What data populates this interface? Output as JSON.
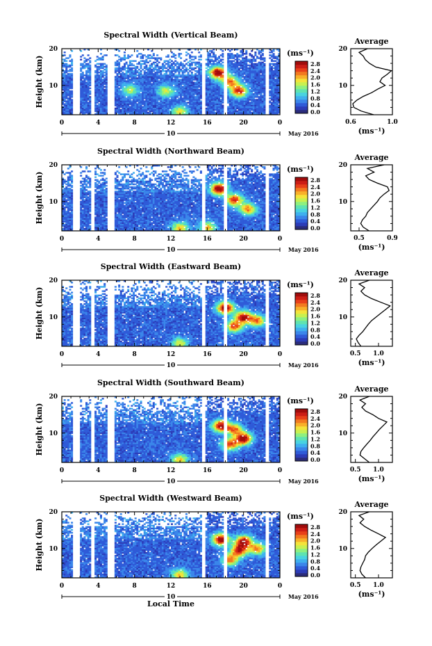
{
  "figure": {
    "x_axis_label": "Local Time",
    "date_label": "May 2016",
    "day_label": "10",
    "colorbar_unit": "(ms⁻¹)",
    "colorbar_ticks": [
      "2.8",
      "2.4",
      "2.0",
      "1.6",
      "1.2",
      "0.8",
      "0.4",
      "0.0"
    ],
    "colorbar_colors": [
      "#2b2c7a",
      "#2c3cb8",
      "#2f5bd8",
      "#3b86ea",
      "#3fb0ee",
      "#49d3e0",
      "#5fe3b0",
      "#8ef080",
      "#c8f050",
      "#f4e33a",
      "#f8b02a",
      "#f27a20",
      "#e8401a",
      "#cc1d16",
      "#a00c0c"
    ],
    "avg_title": "Average",
    "avg_xlabel": "(ms⁻¹)"
  },
  "chart_data": [
    {
      "type": "heatmap",
      "title": "Spectral Width (Vertical Beam)",
      "xlabel": "",
      "ylabel": "Height (km)",
      "x_ticks": [
        "0",
        "4",
        "8",
        "12",
        "16",
        "20",
        "0"
      ],
      "y_ticks": [
        "20",
        "10"
      ],
      "xlim": [
        0,
        24
      ],
      "ylim": [
        2,
        20
      ],
      "hotspots": [
        {
          "t": 17.2,
          "h": 13.5,
          "v": 2.6
        },
        {
          "t": 19.5,
          "h": 8.5,
          "v": 2.2
        },
        {
          "t": 18.5,
          "h": 11,
          "v": 1.8
        },
        {
          "t": 7.5,
          "h": 8.8,
          "v": 1.2
        },
        {
          "t": 11.5,
          "h": 8.5,
          "v": 1.3
        },
        {
          "t": 13,
          "h": 2.8,
          "v": 1.4
        }
      ],
      "gaps": [
        [
          1.1,
          1.9
        ],
        [
          3.2,
          3.5
        ],
        [
          5.1,
          5.8
        ],
        [
          15.4,
          15.8
        ],
        [
          17.8,
          18.1
        ],
        [
          22.5,
          22.7
        ]
      ],
      "average": {
        "title": "Average",
        "xlim": [
          0.6,
          1.0
        ],
        "x_ticks": [
          "0.6",
          "1.0"
        ],
        "y_ticks": [
          "20",
          "10"
        ],
        "h": [
          2,
          3,
          4,
          5,
          6,
          7,
          8,
          9,
          10,
          11,
          12,
          13,
          14,
          15,
          16,
          17,
          18,
          19,
          20
        ],
        "v": [
          0.82,
          0.7,
          0.63,
          0.62,
          0.66,
          0.72,
          0.8,
          0.86,
          0.93,
          0.88,
          0.9,
          0.95,
          0.99,
          0.84,
          0.78,
          0.74,
          0.72,
          0.68,
          0.76
        ]
      }
    },
    {
      "type": "heatmap",
      "title": "Spectral Width (Northward Beam)",
      "xlabel": "",
      "ylabel": "Height (km)",
      "x_ticks": [
        "0",
        "4",
        "8",
        "12",
        "16",
        "20",
        "0"
      ],
      "y_ticks": [
        "20",
        "10"
      ],
      "xlim": [
        0,
        24
      ],
      "ylim": [
        2,
        20
      ],
      "hotspots": [
        {
          "t": 17.3,
          "h": 13.5,
          "v": 2.6
        },
        {
          "t": 19,
          "h": 10.5,
          "v": 2.2
        },
        {
          "t": 20.5,
          "h": 8,
          "v": 1.8
        },
        {
          "t": 13,
          "h": 2.8,
          "v": 1.6
        },
        {
          "t": 16,
          "h": 3,
          "v": 1.5
        }
      ],
      "gaps": [
        [
          1.1,
          1.9
        ],
        [
          3.2,
          3.5
        ],
        [
          5.1,
          5.8
        ],
        [
          15.4,
          15.8
        ],
        [
          17.8,
          18.1
        ],
        [
          22.5,
          22.7
        ]
      ],
      "average": {
        "title": "Average",
        "xlim": [
          0.4,
          0.9
        ],
        "x_ticks": [
          "0.5",
          "0.9"
        ],
        "y_ticks": [
          "20",
          "10"
        ],
        "h": [
          2,
          3,
          4,
          5,
          6,
          7,
          8,
          9,
          10,
          11,
          12,
          13,
          14,
          15,
          16,
          17,
          18,
          19,
          20
        ],
        "v": [
          0.62,
          0.55,
          0.52,
          0.54,
          0.58,
          0.6,
          0.64,
          0.68,
          0.72,
          0.75,
          0.8,
          0.86,
          0.84,
          0.72,
          0.62,
          0.58,
          0.68,
          0.6,
          0.8
        ]
      }
    },
    {
      "type": "heatmap",
      "title": "Spectral Width (Eastward Beam)",
      "xlabel": "",
      "ylabel": "Height (km)",
      "x_ticks": [
        "0",
        "4",
        "8",
        "12",
        "16",
        "20",
        "0"
      ],
      "y_ticks": [
        "20",
        "10"
      ],
      "xlim": [
        0,
        24
      ],
      "ylim": [
        2,
        20
      ],
      "hotspots": [
        {
          "t": 18,
          "h": 12.5,
          "v": 2.6
        },
        {
          "t": 20,
          "h": 10,
          "v": 2.4
        },
        {
          "t": 19,
          "h": 7.5,
          "v": 2.0
        },
        {
          "t": 21.5,
          "h": 9,
          "v": 1.8
        },
        {
          "t": 13,
          "h": 2.8,
          "v": 1.3
        }
      ],
      "gaps": [
        [
          1.1,
          1.9
        ],
        [
          3.2,
          3.5
        ],
        [
          5.1,
          5.8
        ],
        [
          15.4,
          15.8
        ],
        [
          17.8,
          18.1
        ],
        [
          22.5,
          22.7
        ]
      ],
      "average": {
        "title": "Average",
        "xlim": [
          0.4,
          1.3
        ],
        "x_ticks": [
          "0.5",
          "1.0"
        ],
        "y_ticks": [
          "20",
          "10"
        ],
        "h": [
          2,
          3,
          4,
          5,
          6,
          7,
          8,
          9,
          10,
          11,
          12,
          13,
          14,
          15,
          16,
          17,
          18,
          19,
          20
        ],
        "v": [
          0.62,
          0.56,
          0.52,
          0.58,
          0.66,
          0.72,
          0.78,
          0.85,
          0.95,
          1.05,
          1.15,
          1.25,
          1.05,
          0.85,
          0.7,
          0.62,
          0.7,
          0.58,
          0.8
        ]
      }
    },
    {
      "type": "heatmap",
      "title": "Spectral Width (Southward Beam)",
      "xlabel": "",
      "ylabel": "Height (km)",
      "x_ticks": [
        "0",
        "4",
        "8",
        "12",
        "16",
        "20",
        "0"
      ],
      "y_ticks": [
        "20",
        "10"
      ],
      "xlim": [
        0,
        24
      ],
      "ylim": [
        2,
        20
      ],
      "hotspots": [
        {
          "t": 17.5,
          "h": 12,
          "v": 2.4
        },
        {
          "t": 20,
          "h": 8.5,
          "v": 2.6
        },
        {
          "t": 18.5,
          "h": 7,
          "v": 2.0
        },
        {
          "t": 19,
          "h": 11,
          "v": 1.8
        },
        {
          "t": 13,
          "h": 2.8,
          "v": 1.5
        }
      ],
      "gaps": [
        [
          1.1,
          1.9
        ],
        [
          3.2,
          3.5
        ],
        [
          5.1,
          5.8
        ],
        [
          15.4,
          15.8
        ],
        [
          17.8,
          18.1
        ],
        [
          22.5,
          22.7
        ]
      ],
      "average": {
        "title": "Average",
        "xlim": [
          0.4,
          1.3
        ],
        "x_ticks": [
          "0.5",
          "1.0"
        ],
        "y_ticks": [
          "20",
          "10"
        ],
        "h": [
          2,
          3,
          4,
          5,
          6,
          7,
          8,
          9,
          10,
          11,
          12,
          13,
          14,
          15,
          16,
          17,
          18,
          19,
          20
        ],
        "v": [
          0.8,
          0.7,
          0.6,
          0.62,
          0.68,
          0.75,
          0.82,
          0.88,
          0.95,
          1.02,
          1.1,
          1.18,
          1.0,
          0.88,
          0.72,
          0.64,
          0.72,
          0.6,
          0.8
        ]
      }
    },
    {
      "type": "heatmap",
      "title": "Spectral Width (Westward Beam)",
      "xlabel": "Local Time",
      "ylabel": "Height (km)",
      "x_ticks": [
        "0",
        "4",
        "8",
        "12",
        "16",
        "20",
        "0"
      ],
      "y_ticks": [
        "20",
        "10"
      ],
      "xlim": [
        0,
        24
      ],
      "ylim": [
        2,
        20
      ],
      "hotspots": [
        {
          "t": 17.5,
          "h": 12.5,
          "v": 2.6
        },
        {
          "t": 20,
          "h": 12,
          "v": 2.4
        },
        {
          "t": 19.5,
          "h": 9.5,
          "v": 2.2
        },
        {
          "t": 18.5,
          "h": 7,
          "v": 1.8
        },
        {
          "t": 13,
          "h": 2.8,
          "v": 1.6
        },
        {
          "t": 21.5,
          "h": 10,
          "v": 1.8
        }
      ],
      "gaps": [
        [
          1.1,
          1.9
        ],
        [
          3.2,
          3.5
        ],
        [
          5.1,
          5.8
        ],
        [
          15.4,
          15.8
        ],
        [
          17.8,
          18.1
        ],
        [
          22.5,
          22.7
        ]
      ],
      "average": {
        "title": "Average",
        "xlim": [
          0.4,
          1.3
        ],
        "x_ticks": [
          "0.5",
          "1.0"
        ],
        "y_ticks": [
          "20",
          "10"
        ],
        "h": [
          2,
          3,
          4,
          5,
          6,
          7,
          8,
          9,
          10,
          11,
          12,
          13,
          14,
          15,
          16,
          17,
          18,
          19,
          20
        ],
        "v": [
          0.72,
          0.64,
          0.6,
          0.62,
          0.66,
          0.7,
          0.72,
          0.78,
          0.86,
          0.95,
          1.05,
          1.15,
          1.0,
          0.84,
          0.7,
          0.6,
          0.68,
          0.58,
          0.8
        ]
      }
    }
  ]
}
